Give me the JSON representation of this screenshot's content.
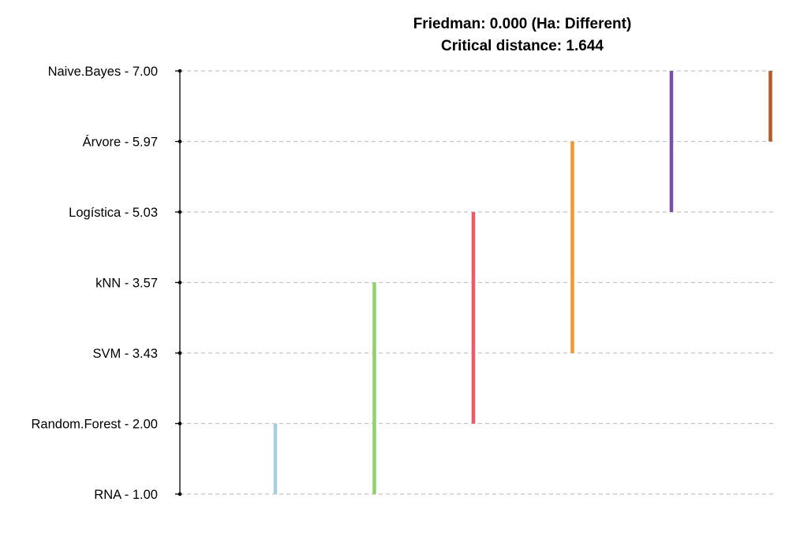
{
  "chart_data": {
    "type": "critical-difference",
    "title": "Friedman: 0.000 (Ha: Different)",
    "subtitle": "Critical distance: 1.644",
    "critical_distance": 1.644,
    "ylim": [
      1,
      7
    ],
    "grid": "dashed horizontal",
    "items": [
      {
        "name": "Naive.Bayes",
        "rank": 7.0,
        "label": "Naive.Bayes - 7.00"
      },
      {
        "name": "Árvore",
        "rank": 5.97,
        "label": "Árvore - 5.97"
      },
      {
        "name": "Logística",
        "rank": 5.03,
        "label": "Logística - 5.03"
      },
      {
        "name": "kNN",
        "rank": 3.57,
        "label": "kNN - 3.57"
      },
      {
        "name": "SVM",
        "rank": 3.43,
        "label": "SVM - 3.43"
      },
      {
        "name": "Random.Forest",
        "rank": 2.0,
        "label": "Random.Forest - 2.00"
      },
      {
        "name": "RNA",
        "rank": 1.0,
        "label": "RNA - 1.00"
      }
    ],
    "groups": [
      {
        "from_rank": 1.0,
        "to_rank": 2.0,
        "color": "#a6cee3"
      },
      {
        "from_rank": 1.0,
        "to_rank": 3.57,
        "color": "#8fd16a"
      },
      {
        "from_rank": 2.0,
        "to_rank": 5.03,
        "color": "#eb5b66"
      },
      {
        "from_rank": 3.43,
        "to_rank": 5.97,
        "color": "#f7962e"
      },
      {
        "from_rank": 5.03,
        "to_rank": 7.0,
        "color": "#7b4fa8"
      },
      {
        "from_rank": 5.97,
        "to_rank": 7.0,
        "color": "#b2582a"
      }
    ]
  }
}
